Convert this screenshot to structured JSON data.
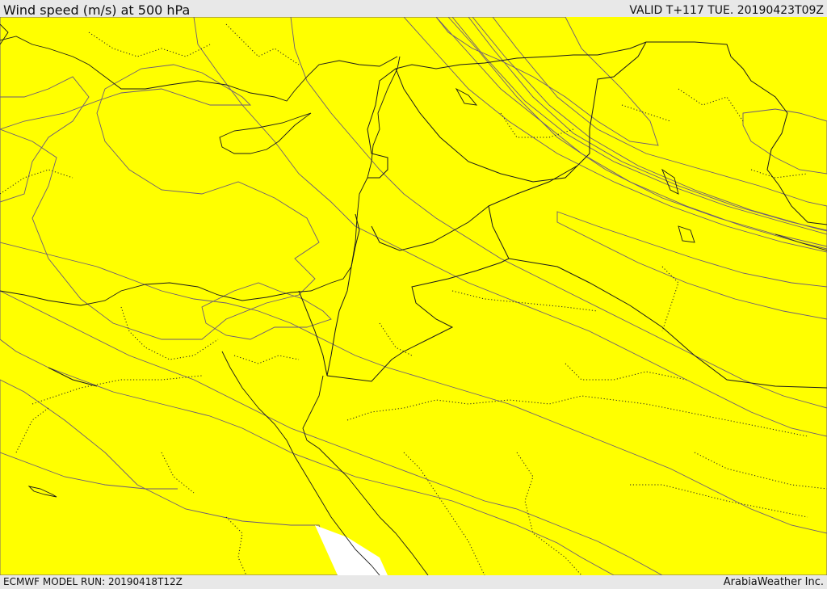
{
  "header": {
    "title": "Wind speed (m/s) at 500 hPa",
    "valid": "VALID T+117 TUE. 20190423T09Z"
  },
  "footer": {
    "model_run": "ECMWF MODEL RUN: 20190418T12Z",
    "credit": "ArabiaWeather Inc."
  },
  "colors": {
    "band_1": "#ffffff",
    "band_2": "#fddfae",
    "band_3": "#ffff00",
    "band_4": "#ffd700",
    "band_5": "#ffbb00",
    "band_6": "#ffa000",
    "band_7": "#ff8a00",
    "band_8": "#ff6a00",
    "band_9": "#ff5000",
    "band_10": "#ff3a00"
  }
}
